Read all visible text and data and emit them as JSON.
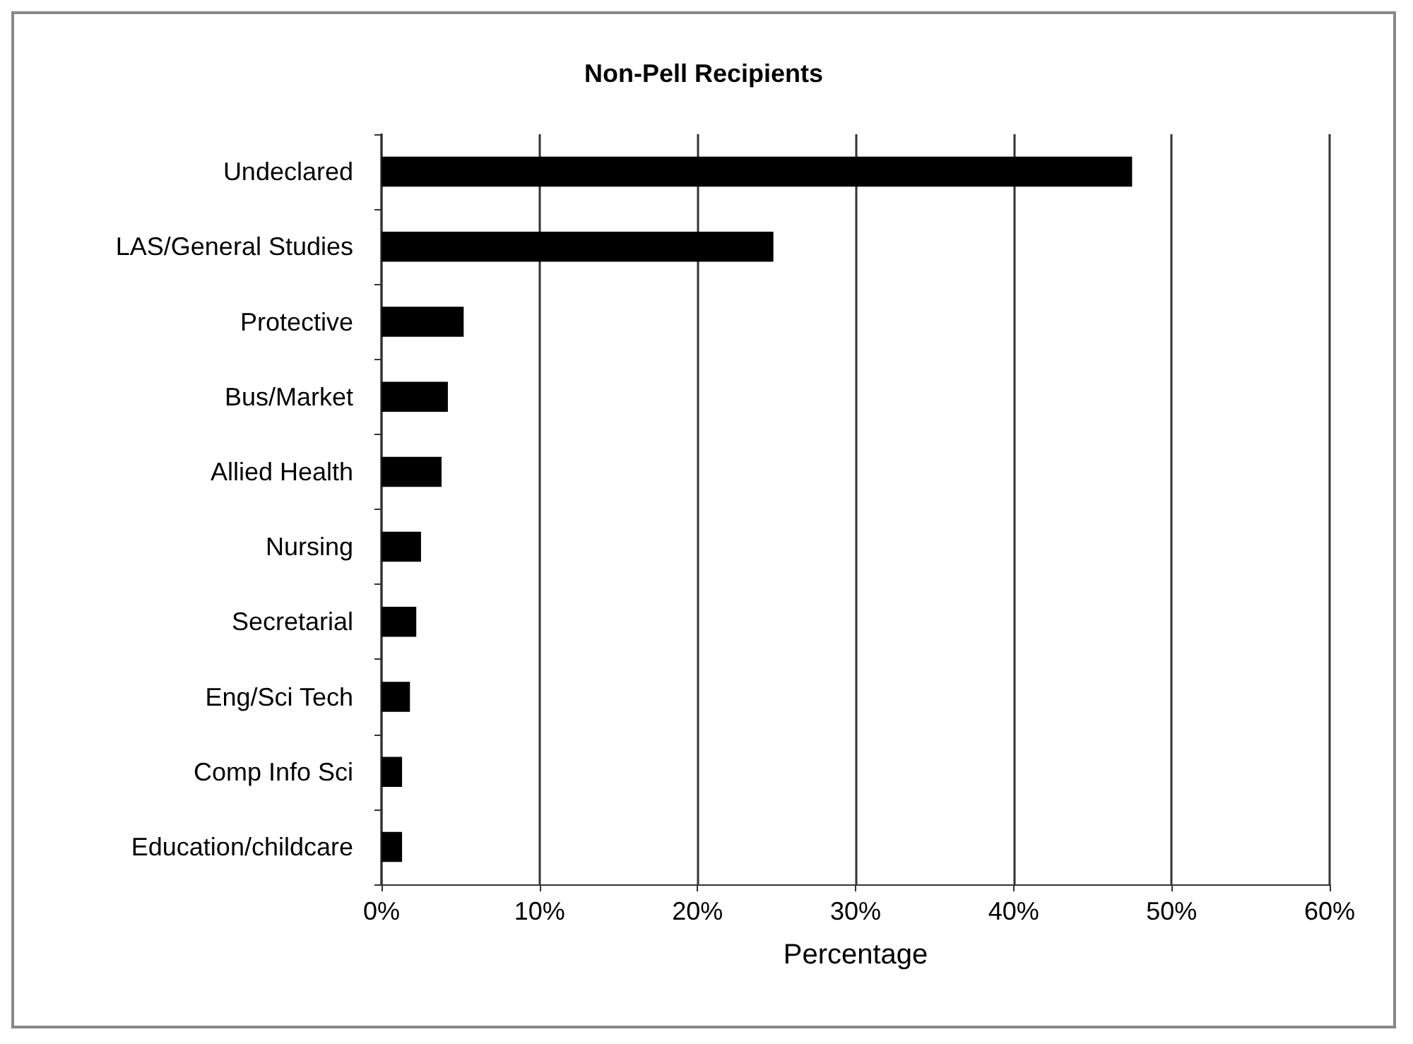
{
  "chart_data": {
    "type": "bar",
    "orientation": "horizontal",
    "title": "Non-Pell Recipients",
    "xlabel": "Percentage",
    "categories": [
      "Undeclared",
      "LAS/General Studies",
      "Protective",
      "Bus/Market",
      "Allied Health",
      "Nursing",
      "Secretarial",
      "Eng/Sci Tech",
      "Comp Info Sci",
      "Education/childcare"
    ],
    "values": [
      47.5,
      24.8,
      5.2,
      4.2,
      3.8,
      2.5,
      2.2,
      1.8,
      1.3,
      1.3
    ],
    "color": "#000000",
    "xlim": [
      0,
      60
    ],
    "xticks": [
      {
        "value": 0,
        "label": "0%"
      },
      {
        "value": 10,
        "label": "10%"
      },
      {
        "value": 20,
        "label": "20%"
      },
      {
        "value": 30,
        "label": "30%"
      },
      {
        "value": 40,
        "label": "40%"
      },
      {
        "value": 50,
        "label": "50%"
      },
      {
        "value": 60,
        "label": "60%"
      }
    ],
    "grid": "x"
  }
}
